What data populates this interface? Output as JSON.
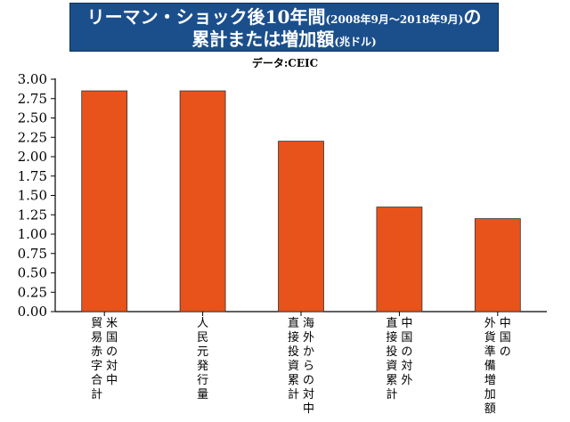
{
  "header": {
    "title_main": "リーマン・ショック後10年間",
    "title_period": "(2008年9月～2018年9月)",
    "title_suffix": "の",
    "subtitle_main": "累計または増加額",
    "subtitle_unit": "(兆ドル)",
    "source": "データ:CEIC"
  },
  "colors": {
    "bar": "#e8521b",
    "title_bg": "#1b4f8c"
  },
  "chart_data": {
    "type": "bar",
    "title": "リーマン・ショック後10年間(2008年9月～2018年9月)の累計または増加額(兆ドル)",
    "categories": [
      [
        "米国の対中",
        "貿易赤字合計"
      ],
      [
        "人民元発行量"
      ],
      [
        "海外からの対中",
        "直接投資累計"
      ],
      [
        "中国の対外",
        "直接投資累計"
      ],
      [
        "中国の",
        "外貨準備増加額"
      ]
    ],
    "values": [
      2.85,
      2.85,
      2.2,
      1.35,
      1.2
    ],
    "ylim": [
      0,
      3.0
    ],
    "yticks": [
      "0.00",
      "0.25",
      "0.50",
      "0.75",
      "1.00",
      "1.25",
      "1.50",
      "1.75",
      "2.00",
      "2.25",
      "2.50",
      "2.75",
      "3.00"
    ],
    "grid": false,
    "legend": false
  }
}
